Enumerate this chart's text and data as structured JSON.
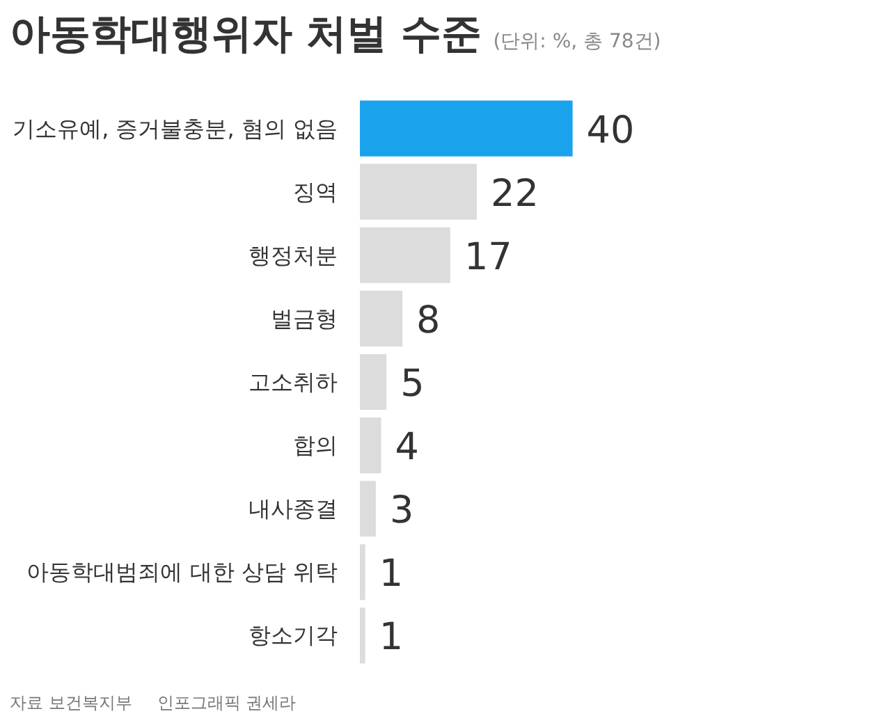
{
  "chart_data": {
    "type": "bar",
    "orientation": "horizontal",
    "title": "아동학대행위자 처벌 수준",
    "subtitle": "(단위: %, 총 78건)",
    "categories": [
      "기소유예, 증거불충분, 혐의 없음",
      "징역",
      "행정처분",
      "벌금형",
      "고소취하",
      "합의",
      "내사종결",
      "아동학대범죄에 대한 상담 위탁",
      "항소기각"
    ],
    "values": [
      40,
      22,
      17,
      8,
      5,
      4,
      3,
      1,
      1
    ],
    "colors": [
      "#1aa3ec",
      "#dcdcdc",
      "#dcdcdc",
      "#dcdcdc",
      "#dcdcdc",
      "#dcdcdc",
      "#dcdcdc",
      "#dcdcdc",
      "#dcdcdc"
    ],
    "data_labels": true,
    "grid": false,
    "annotations": [
      "자료 보건복지부",
      "인포그래픽 권세라"
    ]
  }
}
